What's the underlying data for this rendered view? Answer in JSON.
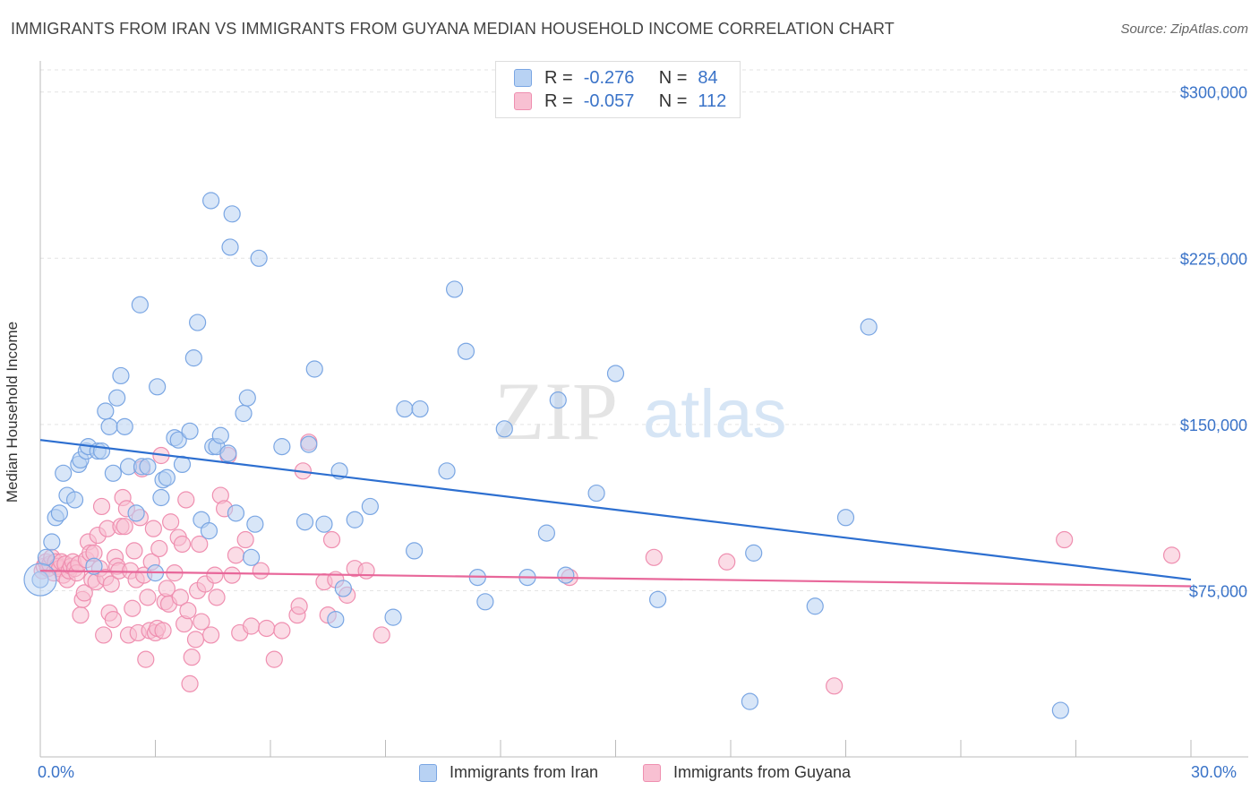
{
  "title": "IMMIGRANTS FROM IRAN VS IMMIGRANTS FROM GUYANA MEDIAN HOUSEHOLD INCOME CORRELATION CHART",
  "source": "Source: ZipAtlas.com",
  "watermark": {
    "zip": "ZIP",
    "atlas": "atlas"
  },
  "legend": {
    "rows": [
      {
        "r_label": "R =",
        "r_value": "-0.276",
        "n_label": "N =",
        "n_value": "84"
      },
      {
        "r_label": "R =",
        "r_value": "-0.057",
        "n_label": "N =",
        "n_value": "112"
      }
    ]
  },
  "colors": {
    "iran_fill": "#b8d2f3",
    "iran_stroke": "#7aa6e3",
    "iran_line": "#2d6fd0",
    "guyana_fill": "#f8c0d2",
    "guyana_stroke": "#ef8fb0",
    "guyana_line": "#e8679a",
    "accent_text": "#3a73c8"
  },
  "chart_data": {
    "type": "scatter",
    "title": "IMMIGRANTS FROM IRAN VS IMMIGRANTS FROM GUYANA MEDIAN HOUSEHOLD INCOME CORRELATION CHART",
    "xlabel": "",
    "ylabel": "Median Household Income",
    "xlim": [
      0,
      30
    ],
    "ylim": [
      0,
      310000
    ],
    "x_tick_labels": [
      "0.0%",
      "30.0%"
    ],
    "y_ticks": [
      75000,
      150000,
      225000,
      300000
    ],
    "y_tick_labels": [
      "$75,000",
      "$150,000",
      "$225,000",
      "$300,000"
    ],
    "grid": true,
    "legend_placement": "top-center",
    "series": [
      {
        "name": "Immigrants from Iran",
        "trend": {
          "x": [
            0,
            30
          ],
          "y": [
            143000,
            80000
          ]
        },
        "points": [
          [
            0.0,
            80000
          ],
          [
            0.15,
            90000
          ],
          [
            0.3,
            97000
          ],
          [
            0.4,
            108000
          ],
          [
            0.5,
            110000
          ],
          [
            0.6,
            128000
          ],
          [
            0.7,
            118000
          ],
          [
            0.9,
            116000
          ],
          [
            1.0,
            132000
          ],
          [
            1.05,
            134000
          ],
          [
            1.2,
            138000
          ],
          [
            1.25,
            140000
          ],
          [
            1.4,
            86000
          ],
          [
            1.5,
            138000
          ],
          [
            1.6,
            138000
          ],
          [
            1.7,
            156000
          ],
          [
            1.8,
            149000
          ],
          [
            1.9,
            128000
          ],
          [
            2.0,
            162000
          ],
          [
            2.1,
            172000
          ],
          [
            2.2,
            149000
          ],
          [
            2.3,
            131000
          ],
          [
            2.5,
            110000
          ],
          [
            2.6,
            204000
          ],
          [
            2.65,
            131000
          ],
          [
            2.8,
            131000
          ],
          [
            3.0,
            83000
          ],
          [
            3.05,
            167000
          ],
          [
            3.15,
            117000
          ],
          [
            3.2,
            125000
          ],
          [
            3.3,
            126000
          ],
          [
            3.5,
            144000
          ],
          [
            3.6,
            143000
          ],
          [
            3.7,
            132000
          ],
          [
            3.9,
            147000
          ],
          [
            4.0,
            180000
          ],
          [
            4.1,
            196000
          ],
          [
            4.2,
            107000
          ],
          [
            4.4,
            102000
          ],
          [
            4.45,
            251000
          ],
          [
            4.5,
            140000
          ],
          [
            4.6,
            140000
          ],
          [
            4.7,
            145000
          ],
          [
            4.9,
            137000
          ],
          [
            4.95,
            230000
          ],
          [
            5.0,
            245000
          ],
          [
            5.1,
            110000
          ],
          [
            5.3,
            155000
          ],
          [
            5.4,
            162000
          ],
          [
            5.5,
            90000
          ],
          [
            5.6,
            105000
          ],
          [
            5.7,
            225000
          ],
          [
            6.3,
            140000
          ],
          [
            6.9,
            106000
          ],
          [
            7.0,
            141000
          ],
          [
            7.15,
            175000
          ],
          [
            7.4,
            105000
          ],
          [
            7.7,
            62000
          ],
          [
            7.8,
            129000
          ],
          [
            7.9,
            76000
          ],
          [
            8.2,
            107000
          ],
          [
            8.6,
            113000
          ],
          [
            9.2,
            63000
          ],
          [
            9.5,
            157000
          ],
          [
            9.75,
            93000
          ],
          [
            9.9,
            157000
          ],
          [
            10.6,
            129000
          ],
          [
            10.8,
            211000
          ],
          [
            11.1,
            183000
          ],
          [
            11.4,
            81000
          ],
          [
            11.6,
            70000
          ],
          [
            12.1,
            148000
          ],
          [
            12.7,
            81000
          ],
          [
            13.2,
            101000
          ],
          [
            13.5,
            161000
          ],
          [
            13.7,
            82000
          ],
          [
            14.5,
            119000
          ],
          [
            15.0,
            173000
          ],
          [
            16.1,
            71000
          ],
          [
            18.5,
            25000
          ],
          [
            18.6,
            92000
          ],
          [
            20.2,
            68000
          ],
          [
            21.0,
            108000
          ],
          [
            21.6,
            194000
          ],
          [
            26.6,
            21000
          ]
        ]
      },
      {
        "name": "Immigrants from Guyana",
        "trend": {
          "x": [
            0,
            30
          ],
          "y": [
            84000,
            77000
          ]
        },
        "points": [
          [
            0.05,
            84000
          ],
          [
            0.1,
            86000
          ],
          [
            0.15,
            88000
          ],
          [
            0.2,
            85000
          ],
          [
            0.25,
            87000
          ],
          [
            0.3,
            90000
          ],
          [
            0.35,
            83000
          ],
          [
            0.4,
            88000
          ],
          [
            0.45,
            86000
          ],
          [
            0.5,
            85000
          ],
          [
            0.55,
            88000
          ],
          [
            0.6,
            82000
          ],
          [
            0.65,
            87000
          ],
          [
            0.7,
            80000
          ],
          [
            0.75,
            84000
          ],
          [
            0.8,
            86000
          ],
          [
            0.85,
            88000
          ],
          [
            0.9,
            85000
          ],
          [
            0.95,
            83000
          ],
          [
            1.0,
            87000
          ],
          [
            1.05,
            64000
          ],
          [
            1.1,
            71000
          ],
          [
            1.15,
            74000
          ],
          [
            1.2,
            89000
          ],
          [
            1.25,
            97000
          ],
          [
            1.3,
            92000
          ],
          [
            1.35,
            80000
          ],
          [
            1.4,
            92000
          ],
          [
            1.45,
            79000
          ],
          [
            1.5,
            100000
          ],
          [
            1.55,
            85000
          ],
          [
            1.6,
            113000
          ],
          [
            1.65,
            55000
          ],
          [
            1.7,
            81000
          ],
          [
            1.75,
            103000
          ],
          [
            1.8,
            65000
          ],
          [
            1.85,
            78000
          ],
          [
            1.9,
            62000
          ],
          [
            1.95,
            90000
          ],
          [
            2.0,
            86000
          ],
          [
            2.05,
            84000
          ],
          [
            2.1,
            104000
          ],
          [
            2.15,
            117000
          ],
          [
            2.2,
            104000
          ],
          [
            2.25,
            112000
          ],
          [
            2.3,
            55000
          ],
          [
            2.35,
            84000
          ],
          [
            2.4,
            67000
          ],
          [
            2.45,
            93000
          ],
          [
            2.5,
            80000
          ],
          [
            2.55,
            56000
          ],
          [
            2.6,
            108000
          ],
          [
            2.65,
            130000
          ],
          [
            2.7,
            82000
          ],
          [
            2.75,
            44000
          ],
          [
            2.8,
            72000
          ],
          [
            2.85,
            57000
          ],
          [
            2.9,
            88000
          ],
          [
            2.95,
            103000
          ],
          [
            3.0,
            56000
          ],
          [
            3.05,
            58000
          ],
          [
            3.1,
            94000
          ],
          [
            3.15,
            136000
          ],
          [
            3.2,
            57000
          ],
          [
            3.25,
            70000
          ],
          [
            3.3,
            76000
          ],
          [
            3.35,
            69000
          ],
          [
            3.4,
            106000
          ],
          [
            3.5,
            83000
          ],
          [
            3.6,
            99000
          ],
          [
            3.65,
            72000
          ],
          [
            3.7,
            96000
          ],
          [
            3.75,
            60000
          ],
          [
            3.8,
            116000
          ],
          [
            3.85,
            66000
          ],
          [
            3.9,
            33000
          ],
          [
            3.95,
            45000
          ],
          [
            4.05,
            53000
          ],
          [
            4.1,
            75000
          ],
          [
            4.15,
            96000
          ],
          [
            4.2,
            61000
          ],
          [
            4.3,
            78000
          ],
          [
            4.45,
            55000
          ],
          [
            4.55,
            82000
          ],
          [
            4.6,
            72000
          ],
          [
            4.7,
            118000
          ],
          [
            4.8,
            112000
          ],
          [
            4.9,
            136000
          ],
          [
            5.0,
            82000
          ],
          [
            5.1,
            91000
          ],
          [
            5.2,
            56000
          ],
          [
            5.35,
            98000
          ],
          [
            5.5,
            59000
          ],
          [
            5.75,
            84000
          ],
          [
            5.9,
            58000
          ],
          [
            6.1,
            44000
          ],
          [
            6.3,
            57000
          ],
          [
            6.7,
            64000
          ],
          [
            6.75,
            68000
          ],
          [
            6.85,
            129000
          ],
          [
            7.0,
            142000
          ],
          [
            7.4,
            79000
          ],
          [
            7.5,
            64000
          ],
          [
            7.6,
            98000
          ],
          [
            7.7,
            80000
          ],
          [
            8.0,
            73000
          ],
          [
            8.2,
            85000
          ],
          [
            8.5,
            84000
          ],
          [
            8.9,
            55000
          ],
          [
            13.8,
            81000
          ],
          [
            16.0,
            90000
          ],
          [
            17.9,
            88000
          ],
          [
            20.7,
            32000
          ],
          [
            26.7,
            98000
          ],
          [
            29.5,
            91000
          ]
        ]
      }
    ]
  },
  "bottom_legend": [
    "Immigrants from Iran",
    "Immigrants from Guyana"
  ]
}
